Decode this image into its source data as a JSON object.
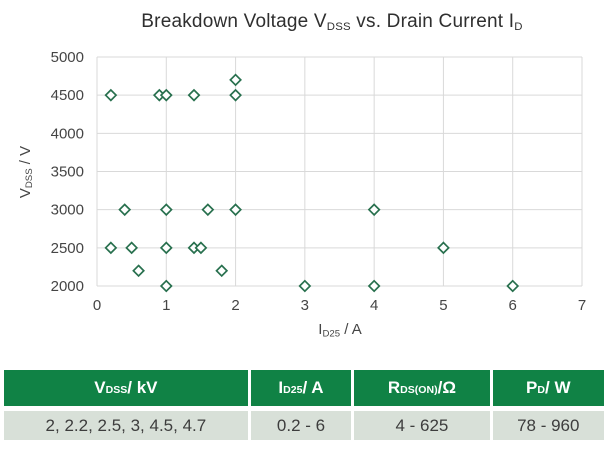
{
  "colors": {
    "background": "#ffffff",
    "marker": "#28704e",
    "marker_fill": "#ffffff",
    "grid": "#d9d9d9",
    "title_text": "#2f2f2f",
    "axis_text": "#454545",
    "table_header_bg": "#108245",
    "table_header_text": "#ffffff",
    "table_row_bg": "#d8e0d8",
    "table_row_text": "#3d3d3d"
  },
  "chart": {
    "title_parts": [
      [
        "Breakdown Voltage V",
        "DSS"
      ],
      [
        " vs. Drain Current I",
        "D"
      ]
    ],
    "x_axis": {
      "label_parts": [
        [
          "I",
          "D25"
        ],
        [
          " / A",
          ""
        ]
      ]
    },
    "y_axis": {
      "label_parts": [
        [
          "V",
          "DSS"
        ],
        [
          " / V",
          ""
        ]
      ]
    }
  },
  "chart_data": {
    "type": "scatter",
    "title": "Breakdown Voltage V_DSS vs. Drain Current I_D",
    "xlabel": "I_D25 / A",
    "ylabel": "V_DSS / V",
    "xlim": [
      0,
      7
    ],
    "ylim": [
      2000,
      5000
    ],
    "x_ticks": [
      0,
      1,
      2,
      3,
      4,
      5,
      6,
      7
    ],
    "y_ticks": [
      2000,
      2500,
      3000,
      3500,
      4000,
      4500,
      5000
    ],
    "grid": true,
    "legend": "none",
    "marker": "open-diamond",
    "points": [
      [
        0.2,
        4500
      ],
      [
        0.9,
        4500
      ],
      [
        1.0,
        4500
      ],
      [
        1.4,
        4500
      ],
      [
        2.0,
        4500
      ],
      [
        2.0,
        4700
      ],
      [
        0.4,
        3000
      ],
      [
        1.0,
        3000
      ],
      [
        1.6,
        3000
      ],
      [
        2.0,
        3000
      ],
      [
        4.0,
        3000
      ],
      [
        0.2,
        2500
      ],
      [
        0.5,
        2500
      ],
      [
        1.0,
        2500
      ],
      [
        1.4,
        2500
      ],
      [
        1.5,
        2500
      ],
      [
        5.0,
        2500
      ],
      [
        0.6,
        2200
      ],
      [
        1.8,
        2200
      ],
      [
        1.0,
        2000
      ],
      [
        3.0,
        2000
      ],
      [
        4.0,
        2000
      ],
      [
        6.0,
        2000
      ]
    ]
  },
  "table": {
    "headers": [
      [
        [
          "V",
          "DSS"
        ],
        [
          " / kV",
          ""
        ]
      ],
      [
        [
          "I",
          "D25"
        ],
        [
          " / A",
          ""
        ]
      ],
      [
        [
          "R",
          "DS(ON)"
        ],
        [
          " /Ω",
          ""
        ]
      ],
      [
        [
          "P",
          "D"
        ],
        [
          " / W",
          ""
        ]
      ]
    ],
    "row": [
      "2, 2.2, 2.5, 3, 4.5, 4.7",
      "0.2 - 6",
      "4 - 625",
      "78 - 960"
    ]
  }
}
